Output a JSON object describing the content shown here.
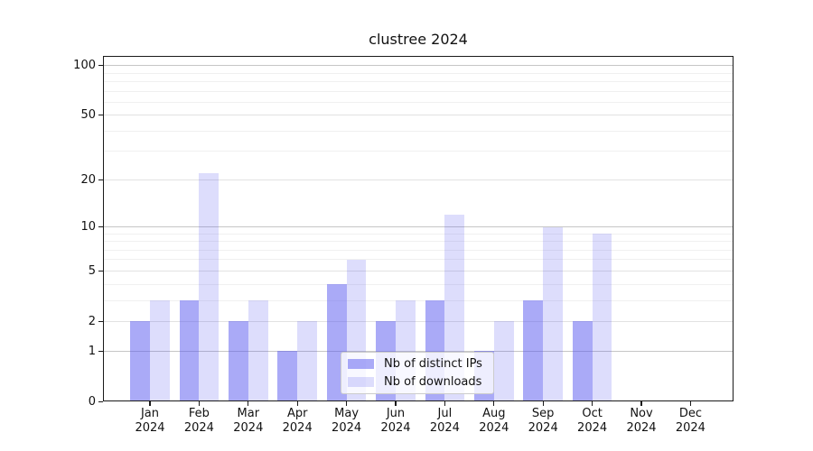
{
  "figure": {
    "title": "clustree 2024"
  },
  "chart_data": {
    "type": "bar",
    "title": "clustree 2024",
    "xlabel": "",
    "ylabel": "",
    "year": "2024",
    "months": [
      "Jan",
      "Feb",
      "Mar",
      "Apr",
      "May",
      "Jun",
      "Jul",
      "Aug",
      "Sep",
      "Oct",
      "Nov",
      "Dec"
    ],
    "categories": [
      "Jan 2024",
      "Feb 2024",
      "Mar 2024",
      "Apr 2024",
      "May 2024",
      "Jun 2024",
      "Jul 2024",
      "Aug 2024",
      "Sep 2024",
      "Oct 2024",
      "Nov 2024",
      "Dec 2024"
    ],
    "series": [
      {
        "name": "Nb of distinct IPs",
        "color": "rgba(85,85,240,0.5)",
        "values": [
          2,
          3,
          2,
          1,
          4,
          2,
          3,
          1,
          3,
          2,
          0,
          0
        ]
      },
      {
        "name": "Nb of downloads",
        "color": "rgba(85,85,240,0.2)",
        "values": [
          3,
          22,
          3,
          2,
          6,
          3,
          12,
          2,
          10,
          9,
          0,
          0
        ]
      }
    ],
    "y_scale": "log1p",
    "y_ticks": [
      0,
      1,
      2,
      5,
      10,
      20,
      50,
      100
    ],
    "y_gridlines_major": [
      1,
      10,
      100
    ],
    "y_gridlines_sub": [
      2,
      5,
      20,
      50
    ],
    "y_gridlines_minor": [
      3,
      4,
      6,
      7,
      8,
      9,
      30,
      40,
      60,
      70,
      80,
      90
    ],
    "ylim": [
      0,
      113
    ],
    "grid": true,
    "legend_position": "lower center"
  }
}
